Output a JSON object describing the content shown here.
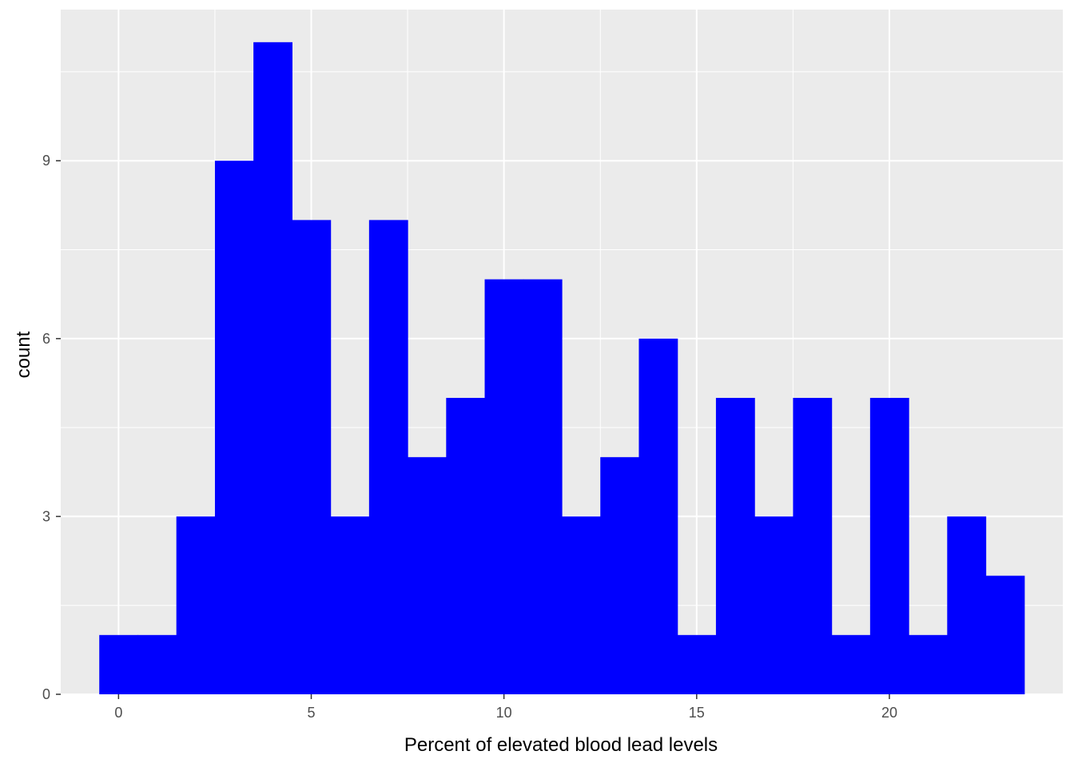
{
  "chart_data": {
    "type": "bar",
    "subtype": "histogram",
    "title": "",
    "xlabel": "Percent of elevated blood lead levels",
    "ylabel": "count",
    "bin_width": 1,
    "bins": [
      {
        "center": 0,
        "count": 1
      },
      {
        "center": 1,
        "count": 1
      },
      {
        "center": 2,
        "count": 3
      },
      {
        "center": 3,
        "count": 9
      },
      {
        "center": 4,
        "count": 11
      },
      {
        "center": 5,
        "count": 8
      },
      {
        "center": 6,
        "count": 3
      },
      {
        "center": 7,
        "count": 8
      },
      {
        "center": 8,
        "count": 4
      },
      {
        "center": 9,
        "count": 5
      },
      {
        "center": 10,
        "count": 7
      },
      {
        "center": 11,
        "count": 7
      },
      {
        "center": 12,
        "count": 3
      },
      {
        "center": 13,
        "count": 4
      },
      {
        "center": 14,
        "count": 6
      },
      {
        "center": 15,
        "count": 1
      },
      {
        "center": 16,
        "count": 5
      },
      {
        "center": 17,
        "count": 3
      },
      {
        "center": 18,
        "count": 5
      },
      {
        "center": 19,
        "count": 1
      },
      {
        "center": 20,
        "count": 5
      },
      {
        "center": 21,
        "count": 1
      },
      {
        "center": 22,
        "count": 3
      },
      {
        "center": 23,
        "count": 2
      }
    ],
    "xlim": [
      -1.5,
      24.5
    ],
    "ylim": [
      0,
      11.55
    ],
    "x_ticks": [
      0,
      5,
      10,
      15,
      20
    ],
    "y_ticks": [
      0,
      3,
      6,
      9
    ],
    "grid": true,
    "legend": "none",
    "colors": {
      "bar_fill": "#0000FF",
      "panel_background": "#EBEBEB",
      "grid": "#FFFFFF"
    }
  }
}
